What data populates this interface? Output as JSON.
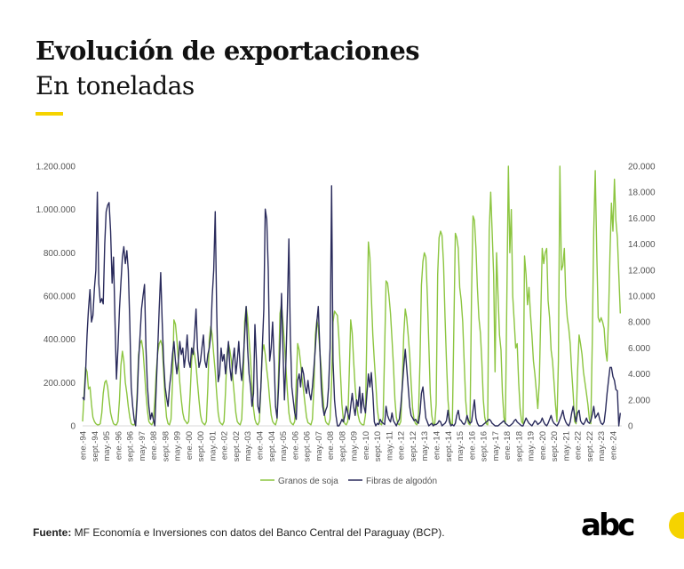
{
  "header": {
    "title": "Evolución de exportaciones",
    "subtitle": "En toneladas"
  },
  "footer": {
    "source_label": "Fuente:",
    "source_text": " MF Economía e Inversiones con datos del Banco Central del Paraguay (BCP).",
    "logo_text": "abc"
  },
  "colors": {
    "soja": "#8cc540",
    "algodon": "#2a2b5c",
    "accent": "#f5d300"
  },
  "chart_data": {
    "type": "line",
    "title": "",
    "xlabel": "",
    "ylabel": "",
    "y2label": "",
    "frequency": "monthly",
    "x_start": "ene-94",
    "x_end": "jun-24",
    "x_tick_labels": [
      "ene.-94",
      "sept.-94",
      "may.-95",
      "ene.-96",
      "sept.-96",
      "may.-97",
      "ene.-98",
      "sept.-98",
      "may.-99",
      "ene.-00",
      "sept.-00",
      "may.-01",
      "ene.-02",
      "sept.-02",
      "may.-03",
      "ene.-04",
      "sept.-04",
      "may.-05",
      "ene.-06",
      "sept.-06",
      "may.-07",
      "ene.-08",
      "sept.-08",
      "may.-09",
      "ene.-10",
      "sept.-10",
      "may.-11",
      "ene.-12",
      "sept.-12",
      "may.-13",
      "ene.-14",
      "sept.-14",
      "may.-15",
      "ene.-16",
      "sept.-16",
      "may.-17",
      "ene.-18",
      "sept.-18",
      "may.-19",
      "ene.-20",
      "sept.-20",
      "may.-21",
      "ene.-22",
      "sept.-22",
      "may.-23",
      "ene.-24"
    ],
    "ylim": [
      0,
      1200000
    ],
    "y_tick_labels": [
      "0",
      "200.000",
      "400.000",
      "600.000",
      "800.000",
      "1.000.000",
      "1.200.000"
    ],
    "y2lim": [
      0,
      20000
    ],
    "y2_tick_labels": [
      "0",
      "2.000",
      "4.000",
      "6.000",
      "8.000",
      "10.000",
      "12.000",
      "14.000",
      "16.000",
      "18.000",
      "20.000"
    ],
    "grid": false,
    "legend": "bottom",
    "series": [
      {
        "name": "Granos de soja",
        "axis": "left",
        "values": [
          20000,
          150000,
          270000,
          250000,
          170000,
          180000,
          100000,
          40000,
          20000,
          10000,
          5000,
          5000,
          10000,
          60000,
          150000,
          200000,
          210000,
          180000,
          120000,
          60000,
          30000,
          10000,
          5000,
          5000,
          20000,
          120000,
          280000,
          345000,
          300000,
          200000,
          150000,
          90000,
          40000,
          10000,
          5000,
          5000,
          20000,
          150000,
          330000,
          380000,
          395000,
          350000,
          250000,
          150000,
          70000,
          20000,
          10000,
          5000,
          20000,
          120000,
          250000,
          340000,
          380000,
          395000,
          370000,
          250000,
          120000,
          40000,
          10000,
          5000,
          30000,
          200000,
          490000,
          470000,
          400000,
          300000,
          200000,
          120000,
          60000,
          30000,
          20000,
          10000,
          20000,
          150000,
          300000,
          360000,
          330000,
          280000,
          200000,
          120000,
          50000,
          20000,
          10000,
          5000,
          20000,
          180000,
          400000,
          460000,
          420000,
          330000,
          250000,
          150000,
          60000,
          20000,
          10000,
          5000,
          20000,
          160000,
          330000,
          380000,
          350000,
          300000,
          220000,
          140000,
          60000,
          20000,
          10000,
          5000,
          30000,
          200000,
          480000,
          550000,
          500000,
          400000,
          300000,
          180000,
          80000,
          30000,
          10000,
          5000,
          20000,
          180000,
          340000,
          375000,
          330000,
          260000,
          200000,
          120000,
          50000,
          20000,
          10000,
          5000,
          30000,
          250000,
          520000,
          560000,
          480000,
          380000,
          270000,
          160000,
          60000,
          20000,
          10000,
          5000,
          20000,
          200000,
          380000,
          350000,
          290000,
          220000,
          160000,
          100000,
          40000,
          15000,
          10000,
          5000,
          30000,
          180000,
          420000,
          490000,
          450000,
          350000,
          260000,
          150000,
          60000,
          20000,
          10000,
          5000,
          30000,
          200000,
          480000,
          530000,
          520000,
          510000,
          400000,
          250000,
          100000,
          30000,
          10000,
          5000,
          20000,
          250000,
          490000,
          430000,
          300000,
          180000,
          100000,
          50000,
          20000,
          10000,
          5000,
          5000,
          50000,
          450000,
          850000,
          780000,
          600000,
          420000,
          300000,
          200000,
          80000,
          30000,
          10000,
          5000,
          40000,
          350000,
          670000,
          660000,
          600000,
          520000,
          400000,
          280000,
          120000,
          40000,
          10000,
          5000,
          20000,
          200000,
          420000,
          540000,
          500000,
          420000,
          330000,
          200000,
          80000,
          30000,
          10000,
          5000,
          50000,
          300000,
          650000,
          760000,
          800000,
          780000,
          600000,
          380000,
          150000,
          50000,
          10000,
          5000,
          100000,
          700000,
          870000,
          900000,
          880000,
          750000,
          500000,
          300000,
          120000,
          40000,
          10000,
          5000,
          450000,
          890000,
          870000,
          820000,
          640000,
          580000,
          480000,
          300000,
          120000,
          40000,
          10000,
          5000,
          600000,
          970000,
          950000,
          820000,
          640000,
          500000,
          430000,
          300000,
          120000,
          40000,
          10000,
          5000,
          900000,
          1080000,
          900000,
          700000,
          250000,
          800000,
          600000,
          420000,
          350000,
          150000,
          40000,
          10000,
          600000,
          1200000,
          800000,
          1000000,
          600000,
          480000,
          360000,
          380000,
          200000,
          80000,
          20000,
          10000,
          785000,
          700000,
          560000,
          640000,
          520000,
          420000,
          300000,
          240000,
          160000,
          80000,
          200000,
          500000,
          820000,
          750000,
          800000,
          820000,
          580000,
          500000,
          350000,
          300000,
          200000,
          100000,
          20000,
          300000,
          1200000,
          720000,
          740000,
          820000,
          600000,
          500000,
          450000,
          380000,
          250000,
          150000,
          20000,
          10000,
          250000,
          420000,
          380000,
          330000,
          250000,
          200000,
          150000,
          100000,
          30000,
          10000,
          400000,
          900000,
          1180000,
          800000,
          500000,
          480000,
          500000,
          480000,
          450000,
          350000,
          300000,
          500000,
          800000,
          1030000,
          900000,
          1140000,
          950000,
          870000,
          700000,
          520000
        ]
      },
      {
        "name": "Fibras de algodón",
        "axis": "right",
        "values": [
          2200,
          2000,
          4000,
          7000,
          9000,
          10500,
          8000,
          8500,
          10600,
          12000,
          18000,
          11000,
          9500,
          9800,
          9400,
          14000,
          16500,
          17000,
          17200,
          15000,
          11000,
          13000,
          8000,
          3600,
          6000,
          9000,
          11000,
          13000,
          13800,
          12500,
          13500,
          12000,
          8000,
          3000,
          1500,
          500,
          0,
          2000,
          5000,
          7000,
          9000,
          10000,
          10900,
          6000,
          3000,
          1500,
          500,
          1000,
          500,
          0,
          3000,
          6000,
          9000,
          11800,
          8000,
          5000,
          3000,
          2200,
          1500,
          3000,
          4000,
          5500,
          6500,
          5000,
          4000,
          5000,
          6500,
          5500,
          6000,
          4500,
          5500,
          7000,
          5000,
          4500,
          6000,
          5500,
          7000,
          9000,
          6000,
          4500,
          5000,
          6000,
          7000,
          5000,
          4500,
          5500,
          6000,
          7000,
          10000,
          12000,
          16500,
          9000,
          3400,
          4000,
          6000,
          5000,
          5500,
          4000,
          5000,
          6500,
          4500,
          3500,
          5000,
          6000,
          4000,
          5000,
          6500,
          4500,
          3500,
          5000,
          7000,
          9200,
          6000,
          4000,
          3000,
          1500,
          2500,
          7800,
          5000,
          1500,
          1000,
          3000,
          6000,
          9000,
          16700,
          15900,
          12000,
          5000,
          6000,
          8000,
          5000,
          1500,
          600,
          3000,
          6000,
          10200,
          6000,
          2000,
          5000,
          9000,
          14400,
          7000,
          3000,
          2000,
          1000,
          500,
          3500,
          4000,
          3000,
          4500,
          4000,
          3000,
          2500,
          3500,
          2500,
          2000,
          3000,
          4500,
          6000,
          8000,
          9200,
          6000,
          3000,
          1500,
          800,
          1200,
          1500,
          3000,
          6000,
          18500,
          5000,
          2000,
          800,
          0,
          0,
          200,
          500,
          300,
          800,
          1500,
          1000,
          500,
          1500,
          2500,
          1500,
          800,
          2000,
          1500,
          3000,
          1000,
          2500,
          1500,
          1000,
          2500,
          4000,
          3000,
          4100,
          2500,
          300,
          0,
          200,
          100,
          500,
          300,
          200,
          100,
          1500,
          800,
          500,
          300,
          1000,
          400,
          200,
          0,
          300,
          500,
          1500,
          3000,
          4500,
          5900,
          4500,
          3000,
          1500,
          800,
          600,
          400,
          500,
          300,
          200,
          1000,
          2500,
          3000,
          1800,
          600,
          300,
          0,
          100,
          200,
          0,
          100,
          100,
          200,
          400,
          300,
          0,
          100,
          200,
          400,
          1200,
          300,
          0,
          100,
          0,
          200,
          800,
          1200,
          500,
          400,
          200,
          100,
          300,
          800,
          400,
          200,
          300,
          1200,
          2000,
          600,
          200,
          0,
          0,
          0,
          100,
          200,
          300,
          400,
          500,
          400,
          200,
          100,
          0,
          0,
          0,
          100,
          200,
          300,
          400,
          200,
          100,
          0,
          0,
          100,
          200,
          400,
          500,
          300,
          200,
          100,
          0,
          0,
          300,
          600,
          400,
          200,
          100,
          0,
          200,
          400,
          300,
          100,
          200,
          300,
          600,
          300,
          100,
          0,
          200,
          500,
          800,
          400,
          200,
          100,
          0,
          200,
          500,
          800,
          1200,
          600,
          300,
          100,
          0,
          300,
          1000,
          1500,
          800,
          300,
          1000,
          1200,
          400,
          200,
          100,
          300,
          600,
          300,
          200,
          400,
          900,
          1500,
          600,
          800,
          1000,
          500,
          200,
          100,
          300,
          1200,
          2500,
          3500,
          4500,
          4500,
          3800,
          3500,
          2800,
          2700,
          0,
          1000
        ]
      }
    ]
  }
}
